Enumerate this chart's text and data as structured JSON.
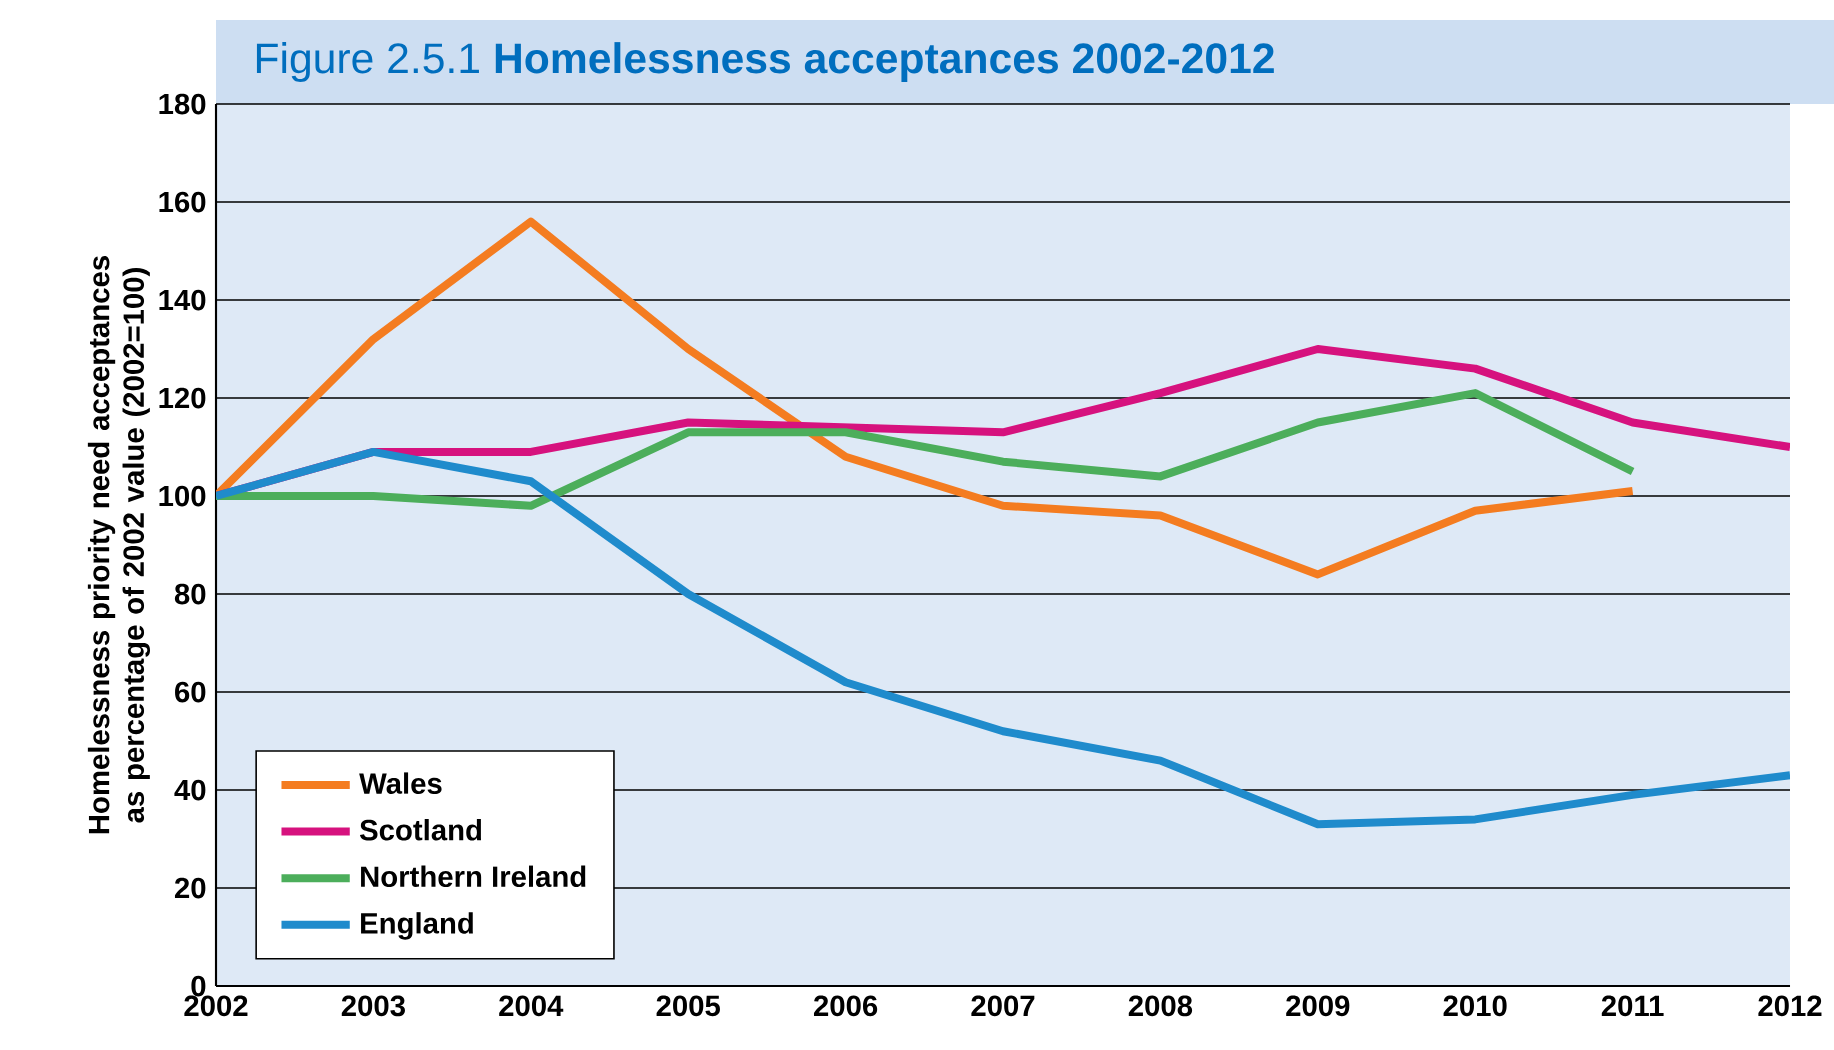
{
  "chart_data": {
    "type": "line",
    "title": "Figure 2.5.1 **Homelessness acceptances 2002-2012**",
    "ylabel": "Homelessness priority need  acceptances as percentage of 2002 value (2002=100)",
    "x": [
      2002,
      2003,
      2004,
      2005,
      2006,
      2007,
      2008,
      2009,
      2010,
      2011,
      2012
    ],
    "xlim": [
      2002,
      2012
    ],
    "xticks": [
      2002,
      2003,
      2004,
      2005,
      2006,
      2007,
      2008,
      2009,
      2010,
      2011,
      2012
    ],
    "ylim": [
      0,
      180
    ],
    "yticks": [
      0,
      20,
      40,
      60,
      80,
      100,
      120,
      140,
      160,
      180
    ],
    "grid": "y",
    "legend": "bottom left",
    "series": [
      {
        "name": "Wales",
        "color": "#f47c20",
        "values": [
          100,
          132,
          156,
          130,
          108,
          98,
          96,
          84,
          97,
          101,
          null
        ]
      },
      {
        "name": "Scotland",
        "color": "#d6127e",
        "values": [
          100,
          109,
          109,
          115,
          114,
          113,
          121,
          130,
          126,
          115,
          110
        ]
      },
      {
        "name": "Northern Ireland",
        "color": "#4cae5b",
        "values": [
          100,
          100,
          98,
          113,
          113,
          107,
          104,
          115,
          121,
          105,
          null
        ]
      },
      {
        "name": "England",
        "color": "#1f8bcc",
        "values": [
          100,
          109,
          103,
          80,
          62,
          52,
          46,
          33,
          34,
          39,
          43
        ]
      }
    ]
  }
}
